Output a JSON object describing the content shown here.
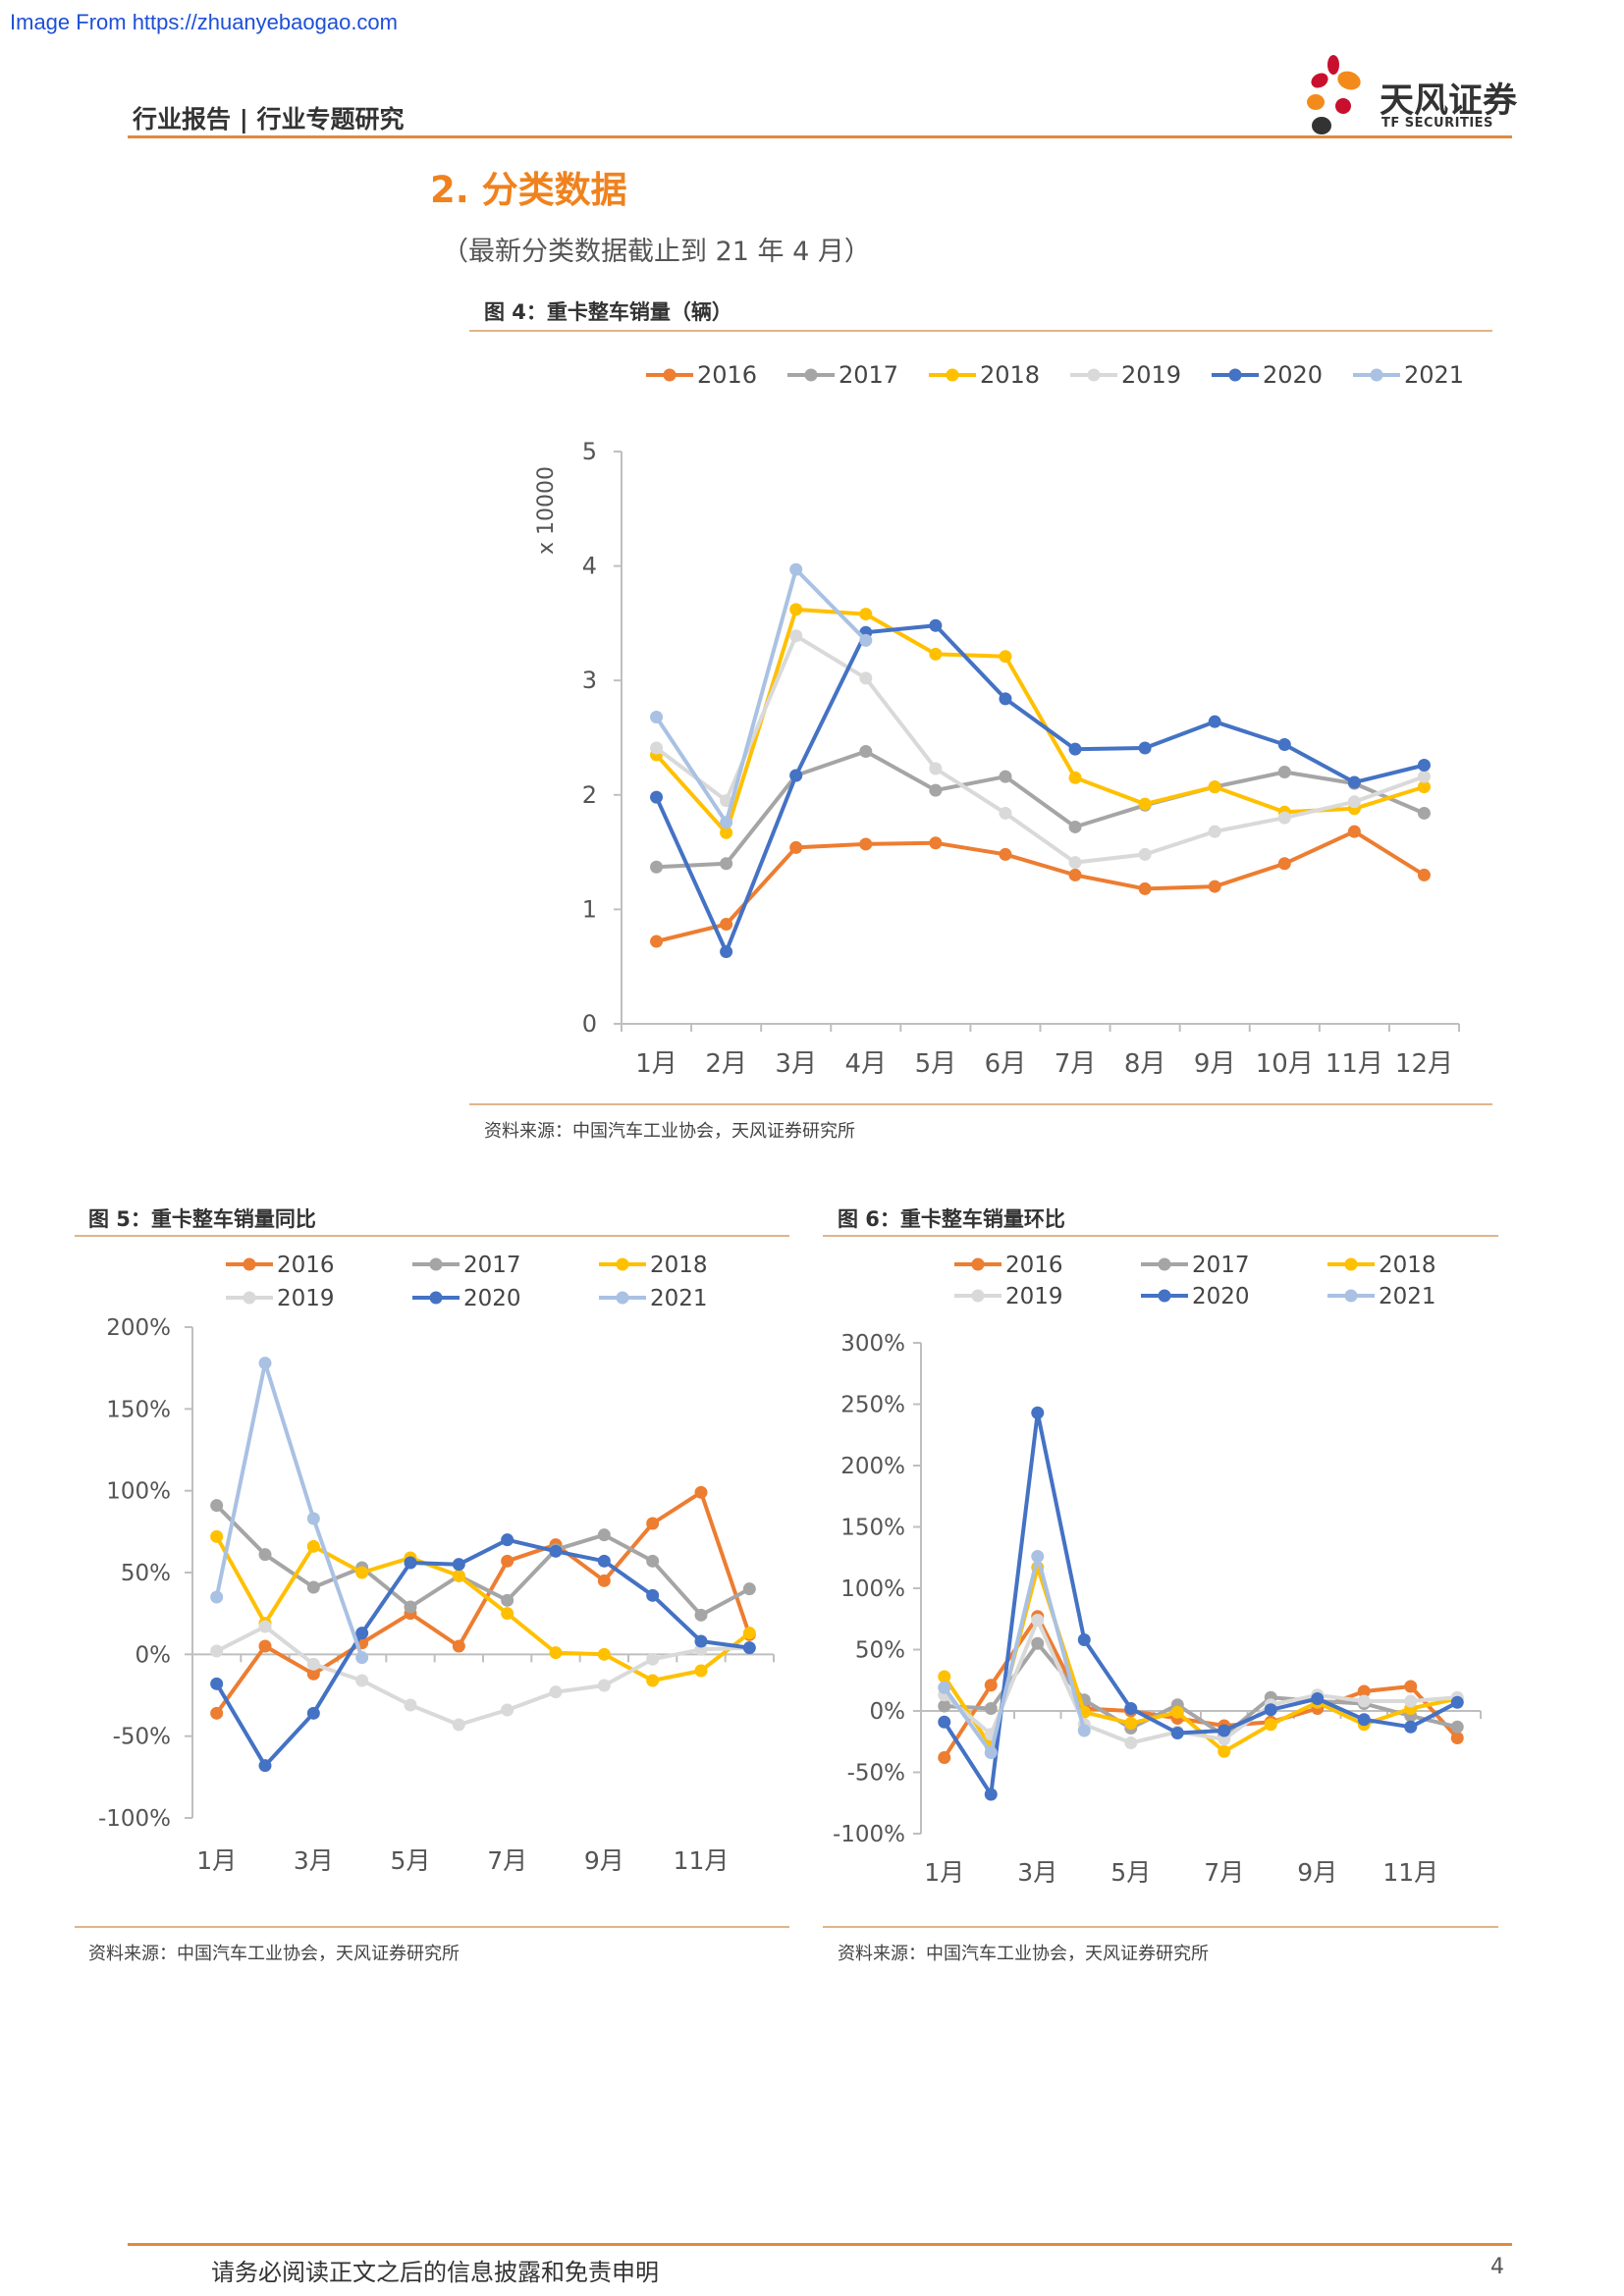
{
  "watermark": "Image From https://zhuanyebaogao.com",
  "header": {
    "title": "行业报告 | 行业专题研究",
    "logo_cn": "天风证券",
    "logo_en": "TF SECURITIES"
  },
  "section": {
    "title": "2. 分类数据",
    "note": "（最新分类数据截止到 21 年 4 月）"
  },
  "colors": {
    "2016": "#ed7d31",
    "2017": "#a5a5a5",
    "2018": "#ffc000",
    "2019": "#d9d9d9",
    "2020": "#4472c4",
    "2021": "#a9c1e3"
  },
  "figures": {
    "fig4": {
      "title": "图 4：重卡整车销量（辆）",
      "source": "资料来源：中国汽车工业协会，天风证券研究所"
    },
    "fig5": {
      "title": "图 5：重卡整车销量同比",
      "source": "资料来源：中国汽车工业协会，天风证券研究所"
    },
    "fig6": {
      "title": "图 6：重卡整车销量环比",
      "source": "资料来源：中国汽车工业协会，天风证券研究所"
    }
  },
  "chart_data": [
    {
      "type": "line",
      "x": [
        "1月",
        "2月",
        "3月",
        "4月",
        "5月",
        "6月",
        "7月",
        "8月",
        "9月",
        "10月",
        "11月",
        "12月"
      ],
      "ylabel": "x 10000",
      "ylim": [
        0,
        5
      ],
      "yticks": [
        "0",
        "1",
        "2",
        "3",
        "4",
        "5"
      ],
      "grid": false,
      "legend_position": "top",
      "series": [
        {
          "name": "2016",
          "values": [
            0.72,
            0.87,
            1.54,
            1.57,
            1.58,
            1.48,
            1.3,
            1.18,
            1.2,
            1.4,
            1.68,
            1.3
          ]
        },
        {
          "name": "2017",
          "values": [
            1.37,
            1.4,
            2.17,
            2.38,
            2.04,
            2.16,
            1.72,
            1.91,
            2.07,
            2.2,
            2.1,
            1.84
          ]
        },
        {
          "name": "2018",
          "values": [
            2.35,
            1.67,
            3.62,
            3.58,
            3.23,
            3.21,
            2.15,
            1.92,
            2.07,
            1.85,
            1.88,
            2.07
          ]
        },
        {
          "name": "2019",
          "values": [
            2.41,
            1.95,
            3.39,
            3.02,
            2.23,
            1.84,
            1.41,
            1.48,
            1.68,
            1.8,
            1.94,
            2.16
          ]
        },
        {
          "name": "2020",
          "values": [
            1.98,
            0.63,
            2.17,
            3.42,
            3.48,
            2.84,
            2.4,
            2.41,
            2.64,
            2.44,
            2.11,
            2.26
          ]
        },
        {
          "name": "2021",
          "values": [
            2.68,
            1.76,
            3.97,
            3.35,
            null,
            null,
            null,
            null,
            null,
            null,
            null,
            null
          ]
        }
      ]
    },
    {
      "type": "line",
      "x": [
        "1月",
        "2月",
        "3月",
        "4月",
        "5月",
        "6月",
        "7月",
        "8月",
        "9月",
        "10月",
        "11月",
        "12月"
      ],
      "xtick_labels": [
        "1月",
        "3月",
        "5月",
        "7月",
        "9月",
        "11月"
      ],
      "yticks": [
        "-100%",
        "-50%",
        "0%",
        "50%",
        "100%",
        "150%",
        "200%"
      ],
      "ylim": [
        -100,
        200
      ],
      "grid": false,
      "legend_position": "top",
      "series": [
        {
          "name": "2016",
          "values": [
            -36,
            5,
            -12,
            7,
            25,
            5,
            57,
            67,
            45,
            80,
            99,
            12
          ]
        },
        {
          "name": "2017",
          "values": [
            91,
            61,
            41,
            53,
            29,
            48,
            33,
            64,
            73,
            57,
            24,
            40
          ]
        },
        {
          "name": "2018",
          "values": [
            72,
            19,
            66,
            50,
            59,
            48,
            25,
            1,
            0,
            -16,
            -10,
            13
          ]
        },
        {
          "name": "2019",
          "values": [
            2,
            17,
            -6,
            -16,
            -31,
            -43,
            -34,
            -23,
            -19,
            -3,
            3,
            4
          ]
        },
        {
          "name": "2020",
          "values": [
            -18,
            -68,
            -36,
            13,
            56,
            55,
            70,
            63,
            57,
            36,
            8,
            4
          ]
        },
        {
          "name": "2021",
          "values": [
            35,
            178,
            83,
            -2,
            null,
            null,
            null,
            null,
            null,
            null,
            null,
            null
          ]
        }
      ]
    },
    {
      "type": "line",
      "x": [
        "1月",
        "2月",
        "3月",
        "4月",
        "5月",
        "6月",
        "7月",
        "8月",
        "9月",
        "10月",
        "11月",
        "12月"
      ],
      "xtick_labels": [
        "1月",
        "3月",
        "5月",
        "7月",
        "9月",
        "11月"
      ],
      "yticks": [
        "-100%",
        "-50%",
        "0%",
        "50%",
        "100%",
        "150%",
        "200%",
        "250%",
        "300%"
      ],
      "ylim": [
        -100,
        300
      ],
      "grid": false,
      "legend_position": "top",
      "series": [
        {
          "name": "2016",
          "values": [
            -38,
            21,
            77,
            2,
            0,
            -6,
            -12,
            -9,
            2,
            16,
            20,
            -22
          ]
        },
        {
          "name": "2017",
          "values": [
            4,
            2,
            55,
            9,
            -14,
            5,
            -20,
            11,
            8,
            6,
            -4,
            -13
          ]
        },
        {
          "name": "2018",
          "values": [
            28,
            -29,
            117,
            -1,
            -10,
            -1,
            -33,
            -11,
            7,
            -11,
            2,
            10
          ]
        },
        {
          "name": "2019",
          "values": [
            13,
            -19,
            74,
            -11,
            -26,
            -17,
            -23,
            5,
            13,
            8,
            8,
            11
          ]
        },
        {
          "name": "2020",
          "values": [
            -9,
            -68,
            243,
            58,
            2,
            -18,
            -16,
            1,
            10,
            -7,
            -13,
            7
          ]
        },
        {
          "name": "2021",
          "values": [
            19,
            -34,
            126,
            -16,
            null,
            null,
            null,
            null,
            null,
            null,
            null,
            null
          ]
        }
      ]
    }
  ],
  "footer": {
    "disclaimer": "请务必阅读正文之后的信息披露和免责申明",
    "page": "4"
  }
}
